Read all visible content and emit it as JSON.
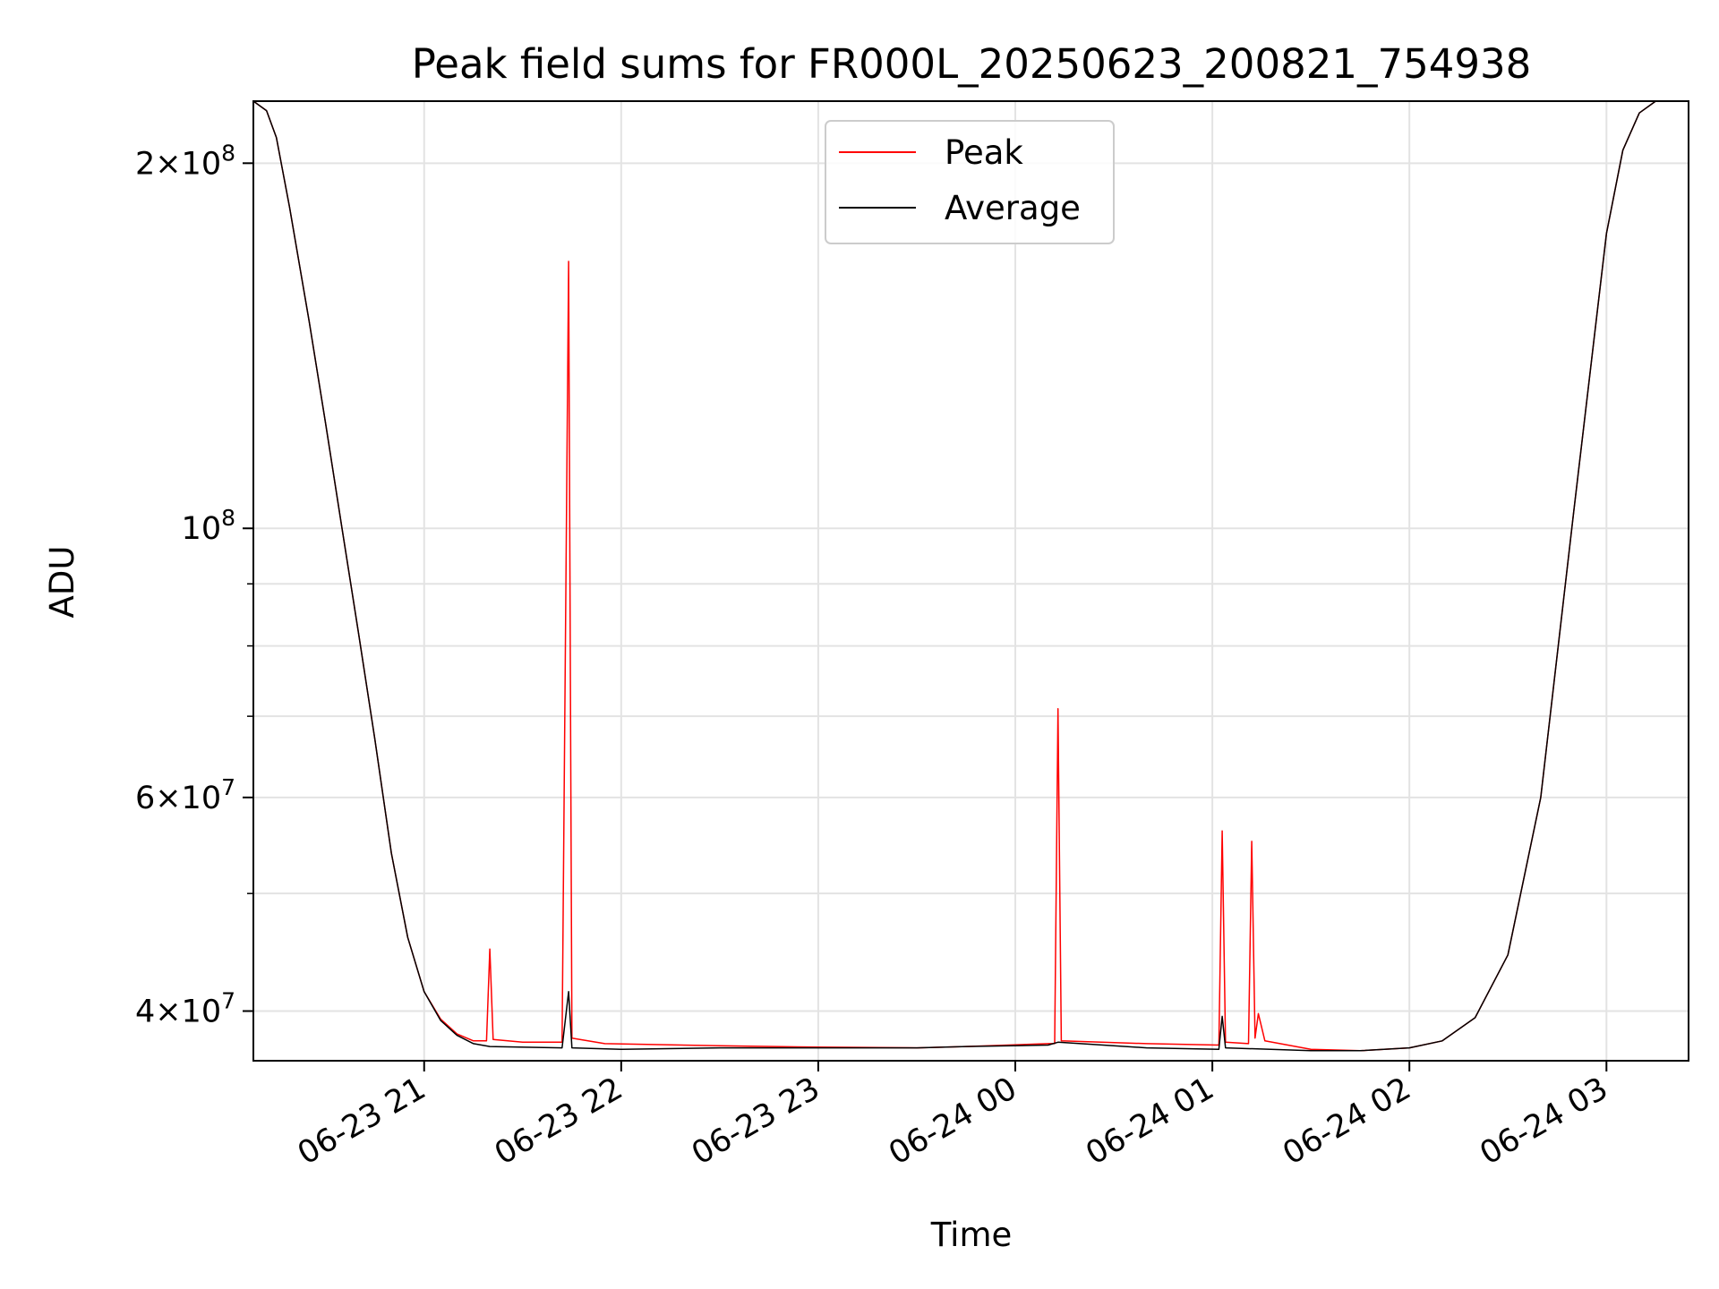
{
  "chart_data": {
    "type": "line",
    "title": "Peak field sums for FR000L_20250623_200821_754938",
    "xlabel": "Time",
    "ylabel": "ADU",
    "yscale": "log",
    "grid": true,
    "legend_position": "upper center",
    "xlim": [
      "2025-06-23 20:08",
      "2025-06-24 03:25"
    ],
    "ylim": [
      36400000,
      225000000
    ],
    "x_ticks": [
      {
        "value": "2025-06-23 21:00",
        "label": "06-23 21"
      },
      {
        "value": "2025-06-23 22:00",
        "label": "06-23 22"
      },
      {
        "value": "2025-06-23 23:00",
        "label": "06-23 23"
      },
      {
        "value": "2025-06-24 00:00",
        "label": "06-24 00"
      },
      {
        "value": "2025-06-24 01:00",
        "label": "06-24 01"
      },
      {
        "value": "2025-06-24 02:00",
        "label": "06-24 02"
      },
      {
        "value": "2025-06-24 03:00",
        "label": "06-24 03"
      }
    ],
    "y_ticks": [
      {
        "value": 40000000,
        "base": "4",
        "exp": "7"
      },
      {
        "value": 60000000,
        "base": "6",
        "exp": "7"
      },
      {
        "value": 100000000,
        "base": "",
        "exp": "8"
      },
      {
        "value": 200000000,
        "base": "2",
        "exp": "8"
      }
    ],
    "y_minor_ticks": [
      50000000,
      70000000,
      80000000,
      90000000
    ],
    "series": [
      {
        "name": "Peak",
        "color": "#ff0000",
        "points": [
          [
            "2025-06-23 20:08",
            225000000
          ],
          [
            "2025-06-23 20:12",
            221000000
          ],
          [
            "2025-06-23 20:15",
            210000000
          ],
          [
            "2025-06-23 20:19",
            184000000
          ],
          [
            "2025-06-23 20:25",
            148000000
          ],
          [
            "2025-06-23 20:30",
            122000000
          ],
          [
            "2025-06-23 20:35",
            100000000
          ],
          [
            "2025-06-23 20:40",
            82000000
          ],
          [
            "2025-06-23 20:45",
            67000000
          ],
          [
            "2025-06-23 20:50",
            54000000
          ],
          [
            "2025-06-23 20:55",
            46000000
          ],
          [
            "2025-06-23 21:00",
            41500000
          ],
          [
            "2025-06-23 21:05",
            39400000
          ],
          [
            "2025-06-23 21:10",
            38300000
          ],
          [
            "2025-06-23 21:15",
            37800000
          ],
          [
            "2025-06-23 21:19",
            37800000
          ],
          [
            "2025-06-23 21:20",
            45000000
          ],
          [
            "2025-06-23 21:21",
            37900000
          ],
          [
            "2025-06-23 21:30",
            37700000
          ],
          [
            "2025-06-23 21:42",
            37700000
          ],
          [
            "2025-06-23 21:44",
            166000000
          ],
          [
            "2025-06-23 21:45",
            38000000
          ],
          [
            "2025-06-23 21:55",
            37600000
          ],
          [
            "2025-06-23 22:30",
            37450000
          ],
          [
            "2025-06-23 23:00",
            37350000
          ],
          [
            "2025-06-23 23:30",
            37300000
          ],
          [
            "2025-06-23 23:45",
            37400000
          ],
          [
            "2025-06-24 00:10",
            37600000
          ],
          [
            "2025-06-24 00:12",
            37600000
          ],
          [
            "2025-06-24 00:13",
            71000000
          ],
          [
            "2025-06-24 00:14",
            37800000
          ],
          [
            "2025-06-24 00:40",
            37600000
          ],
          [
            "2025-06-24 01:02",
            37500000
          ],
          [
            "2025-06-24 01:03",
            56300000
          ],
          [
            "2025-06-24 01:04",
            37700000
          ],
          [
            "2025-06-24 01:11",
            37600000
          ],
          [
            "2025-06-24 01:12",
            55200000
          ],
          [
            "2025-06-24 01:13",
            38000000
          ],
          [
            "2025-06-24 01:14",
            39800000
          ],
          [
            "2025-06-24 01:16",
            37800000
          ],
          [
            "2025-06-24 01:30",
            37200000
          ],
          [
            "2025-06-24 01:45",
            37100000
          ],
          [
            "2025-06-24 02:00",
            37300000
          ],
          [
            "2025-06-24 02:10",
            37800000
          ],
          [
            "2025-06-24 02:20",
            39500000
          ],
          [
            "2025-06-24 02:30",
            44500000
          ],
          [
            "2025-06-24 02:40",
            60000000
          ],
          [
            "2025-06-24 02:50",
            103000000
          ],
          [
            "2025-06-24 03:00",
            175000000
          ],
          [
            "2025-06-24 03:05",
            205000000
          ],
          [
            "2025-06-24 03:10",
            220000000
          ],
          [
            "2025-06-24 03:15",
            225000000
          ],
          [
            "2025-06-24 03:25",
            225000000
          ]
        ]
      },
      {
        "name": "Average",
        "color": "#000000",
        "points": [
          [
            "2025-06-23 20:08",
            225000000
          ],
          [
            "2025-06-23 20:12",
            221000000
          ],
          [
            "2025-06-23 20:15",
            210000000
          ],
          [
            "2025-06-23 20:19",
            184000000
          ],
          [
            "2025-06-23 20:25",
            148000000
          ],
          [
            "2025-06-23 20:30",
            122000000
          ],
          [
            "2025-06-23 20:35",
            100000000
          ],
          [
            "2025-06-23 20:40",
            82000000
          ],
          [
            "2025-06-23 20:45",
            67000000
          ],
          [
            "2025-06-23 20:50",
            54000000
          ],
          [
            "2025-06-23 20:55",
            46000000
          ],
          [
            "2025-06-23 21:00",
            41500000
          ],
          [
            "2025-06-23 21:05",
            39300000
          ],
          [
            "2025-06-23 21:10",
            38200000
          ],
          [
            "2025-06-23 21:15",
            37600000
          ],
          [
            "2025-06-23 21:20",
            37400000
          ],
          [
            "2025-06-23 21:42",
            37300000
          ],
          [
            "2025-06-23 21:44",
            41500000
          ],
          [
            "2025-06-23 21:45",
            37300000
          ],
          [
            "2025-06-23 22:00",
            37200000
          ],
          [
            "2025-06-23 22:30",
            37300000
          ],
          [
            "2025-06-23 23:00",
            37300000
          ],
          [
            "2025-06-23 23:30",
            37300000
          ],
          [
            "2025-06-23 23:45",
            37400000
          ],
          [
            "2025-06-24 00:10",
            37500000
          ],
          [
            "2025-06-24 00:13",
            37700000
          ],
          [
            "2025-06-24 00:40",
            37300000
          ],
          [
            "2025-06-24 01:02",
            37200000
          ],
          [
            "2025-06-24 01:03",
            39600000
          ],
          [
            "2025-06-24 01:04",
            37300000
          ],
          [
            "2025-06-24 01:30",
            37100000
          ],
          [
            "2025-06-24 01:45",
            37100000
          ],
          [
            "2025-06-24 02:00",
            37300000
          ],
          [
            "2025-06-24 02:10",
            37800000
          ],
          [
            "2025-06-24 02:20",
            39500000
          ],
          [
            "2025-06-24 02:30",
            44500000
          ],
          [
            "2025-06-24 02:40",
            60000000
          ],
          [
            "2025-06-24 02:50",
            103000000
          ],
          [
            "2025-06-24 03:00",
            175000000
          ],
          [
            "2025-06-24 03:05",
            205000000
          ],
          [
            "2025-06-24 03:10",
            220000000
          ],
          [
            "2025-06-24 03:15",
            225000000
          ],
          [
            "2025-06-24 03:25",
            225000000
          ]
        ]
      }
    ]
  }
}
